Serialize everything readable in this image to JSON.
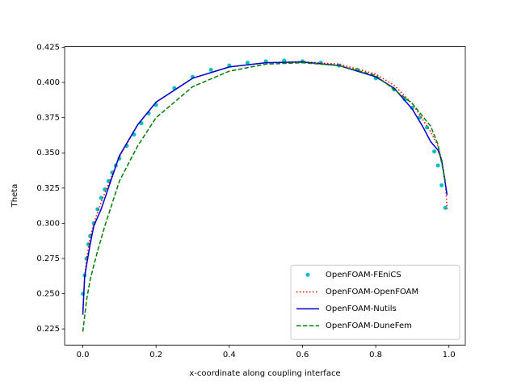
{
  "chart_data": {
    "type": "line",
    "x_label": "x-coordinate along coupling interface",
    "y_label": "Theta",
    "xlim": [
      -0.0497,
      1.0447
    ],
    "ylim": [
      0.2135,
      0.4255
    ],
    "xticks": [
      {
        "value": 0,
        "label": "0.0"
      },
      {
        "value": 0.2,
        "label": "0.2"
      },
      {
        "value": 0.4,
        "label": "0.4"
      },
      {
        "value": 0.6,
        "label": "0.6"
      },
      {
        "value": 0.8,
        "label": "0.8"
      },
      {
        "value": 1,
        "label": "1.0"
      }
    ],
    "yticks": [
      0.225,
      {
        "value": 0.25,
        "label": "0.250"
      },
      0.275,
      {
        "value": 0.3,
        "label": "0.300"
      },
      0.325,
      {
        "value": 0.35,
        "label": "0.350"
      },
      0.375,
      {
        "value": 0.4,
        "label": "0.400"
      },
      0.425
    ],
    "legend": "lower right",
    "series": [
      {
        "name": "OpenFOAM-FEniCS",
        "color": "#00bfbf",
        "style": "dots",
        "x": [
          0.0,
          0.005,
          0.01,
          0.015,
          0.02,
          0.03,
          0.04,
          0.05,
          0.06,
          0.07,
          0.08,
          0.09,
          0.1,
          0.12,
          0.14,
          0.16,
          0.18,
          0.2,
          0.25,
          0.3,
          0.35,
          0.4,
          0.45,
          0.5,
          0.55,
          0.6,
          0.65,
          0.7,
          0.75,
          0.8,
          0.85,
          0.88,
          0.9,
          0.92,
          0.94,
          0.96,
          0.97,
          0.98,
          0.99
        ],
        "values": [
          0.25,
          0.263,
          0.275,
          0.285,
          0.291,
          0.3,
          0.31,
          0.318,
          0.324,
          0.33,
          0.336,
          0.341,
          0.346,
          0.355,
          0.363,
          0.371,
          0.378,
          0.384,
          0.396,
          0.404,
          0.409,
          0.412,
          0.414,
          0.415,
          0.4155,
          0.415,
          0.414,
          0.412,
          0.409,
          0.403,
          0.395,
          0.388,
          0.382,
          0.375,
          0.368,
          0.351,
          0.341,
          0.327,
          0.311
        ]
      },
      {
        "name": "OpenFOAM-OpenFOAM",
        "color": "#ff0000",
        "style": "dotted",
        "x": [
          0.0,
          0.005,
          0.01,
          0.02,
          0.03,
          0.05,
          0.1,
          0.15,
          0.2,
          0.3,
          0.4,
          0.5,
          0.6,
          0.7,
          0.8,
          0.85,
          0.9,
          0.93,
          0.95,
          0.97,
          0.98,
          0.99,
          0.995
        ],
        "values": [
          0.237,
          0.262,
          0.274,
          0.29,
          0.3,
          0.315,
          0.347,
          0.37,
          0.386,
          0.403,
          0.411,
          0.414,
          0.4148,
          0.413,
          0.406,
          0.398,
          0.385,
          0.373,
          0.365,
          0.355,
          0.345,
          0.33,
          0.31
        ]
      },
      {
        "name": "OpenFOAM-Nutils",
        "color": "#0000cc",
        "style": "solid",
        "x": [
          0.0,
          0.005,
          0.01,
          0.02,
          0.03,
          0.05,
          0.1,
          0.15,
          0.2,
          0.3,
          0.4,
          0.5,
          0.6,
          0.7,
          0.8,
          0.85,
          0.9,
          0.93,
          0.95,
          0.97,
          0.98,
          0.995
        ],
        "values": [
          0.235,
          0.262,
          0.27,
          0.285,
          0.298,
          0.31,
          0.348,
          0.37,
          0.386,
          0.403,
          0.411,
          0.414,
          0.4145,
          0.412,
          0.404,
          0.396,
          0.381,
          0.368,
          0.358,
          0.352,
          0.345,
          0.32
        ]
      },
      {
        "name": "OpenFOAM-DuneFem",
        "color": "#008000",
        "style": "dashed",
        "x": [
          0.0,
          0.01,
          0.02,
          0.04,
          0.06,
          0.1,
          0.15,
          0.2,
          0.3,
          0.4,
          0.5,
          0.6,
          0.7,
          0.8,
          0.9,
          0.95,
          0.97,
          0.99
        ],
        "values": [
          0.223,
          0.245,
          0.26,
          0.28,
          0.298,
          0.33,
          0.355,
          0.375,
          0.397,
          0.408,
          0.413,
          0.414,
          0.412,
          0.405,
          0.385,
          0.369,
          0.356,
          0.33
        ]
      }
    ]
  }
}
